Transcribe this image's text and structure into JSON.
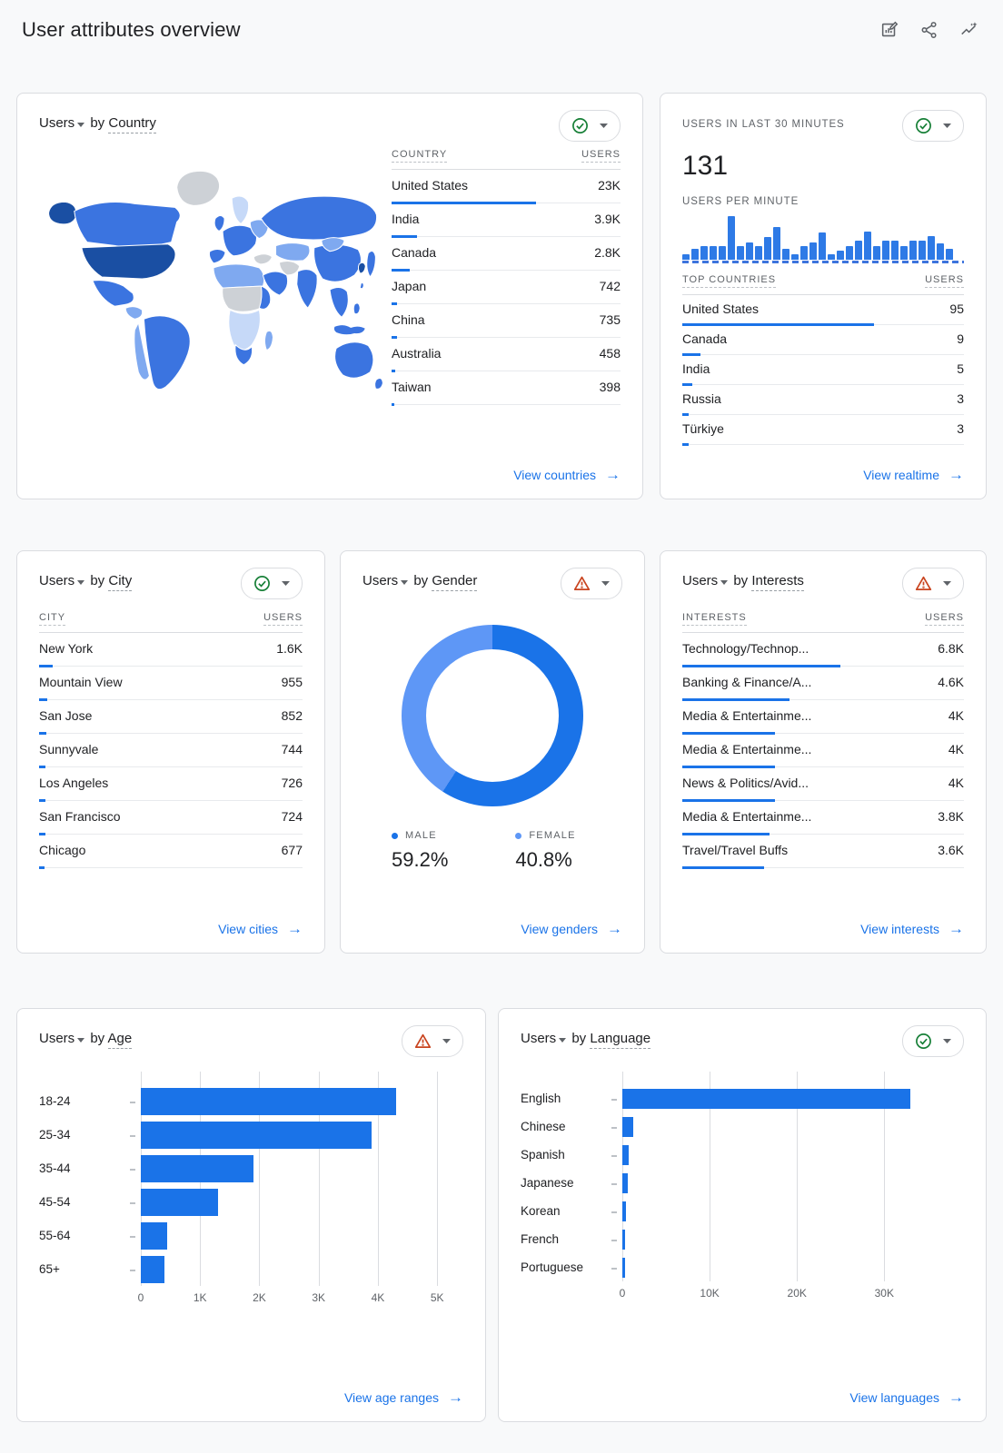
{
  "theme": {
    "accent": "#1a73e8",
    "ok_color": "#188038",
    "warning_color": "#c9441f",
    "page_bg": "#f8f9fa",
    "card_border": "#dadce0"
  },
  "header": {
    "title": "User attributes overview",
    "icons": [
      "customize-report-icon",
      "share-icon",
      "insights-icon"
    ]
  },
  "cards": {
    "country": {
      "title": {
        "entity": "Users",
        "connector": "by",
        "dimension": "Country"
      },
      "status": "ok",
      "table": {
        "headers": [
          "COUNTRY",
          "USERS"
        ],
        "rows": [
          {
            "name": "United States",
            "value": "23K",
            "bar_pct": 63
          },
          {
            "name": "India",
            "value": "3.9K",
            "bar_pct": 11
          },
          {
            "name": "Canada",
            "value": "2.8K",
            "bar_pct": 8
          },
          {
            "name": "Japan",
            "value": "742",
            "bar_pct": 2.2
          },
          {
            "name": "China",
            "value": "735",
            "bar_pct": 2.2
          },
          {
            "name": "Australia",
            "value": "458",
            "bar_pct": 1.4
          },
          {
            "name": "Taiwan",
            "value": "398",
            "bar_pct": 1.2
          }
        ]
      },
      "footer_link": "View countries"
    },
    "realtime": {
      "label": "USERS IN LAST 30 MINUTES",
      "value": "131",
      "chart_label": "USERS PER MINUTE",
      "per_minute_bars": [
        12,
        24,
        32,
        32,
        32,
        100,
        32,
        40,
        32,
        52,
        75,
        24,
        12,
        32,
        40,
        63,
        12,
        20,
        32,
        44,
        65,
        32,
        44,
        44,
        32,
        44,
        44,
        55,
        38,
        24
      ],
      "status": "ok",
      "table": {
        "headers": [
          "TOP COUNTRIES",
          "USERS"
        ],
        "rows": [
          {
            "name": "United States",
            "value": "95",
            "bar_pct": 68
          },
          {
            "name": "Canada",
            "value": "9",
            "bar_pct": 6.5
          },
          {
            "name": "India",
            "value": "5",
            "bar_pct": 3.6
          },
          {
            "name": "Russia",
            "value": "3",
            "bar_pct": 2.2
          },
          {
            "name": "Türkiye",
            "value": "3",
            "bar_pct": 2.2
          }
        ]
      },
      "footer_link": "View realtime"
    },
    "city": {
      "title": {
        "entity": "Users",
        "connector": "by",
        "dimension": "City"
      },
      "status": "ok",
      "table": {
        "headers": [
          "CITY",
          "USERS"
        ],
        "rows": [
          {
            "name": "New York",
            "value": "1.6K",
            "bar_pct": 5
          },
          {
            "name": "Mountain View",
            "value": "955",
            "bar_pct": 3
          },
          {
            "name": "San Jose",
            "value": "852",
            "bar_pct": 2.7
          },
          {
            "name": "Sunnyvale",
            "value": "744",
            "bar_pct": 2.4
          },
          {
            "name": "Los Angeles",
            "value": "726",
            "bar_pct": 2.3
          },
          {
            "name": "San Francisco",
            "value": "724",
            "bar_pct": 2.3
          },
          {
            "name": "Chicago",
            "value": "677",
            "bar_pct": 2.1
          }
        ]
      },
      "footer_link": "View cities"
    },
    "gender": {
      "title": {
        "entity": "Users",
        "connector": "by",
        "dimension": "Gender"
      },
      "status": "warning",
      "male_label": "MALE",
      "male_value": "59.2%",
      "female_label": "FEMALE",
      "female_value": "40.8%",
      "male_pct": 59.2,
      "colors": {
        "male": "#1a73e8",
        "female": "#5e97f6"
      },
      "footer_link": "View genders"
    },
    "interests": {
      "title": {
        "entity": "Users",
        "connector": "by",
        "dimension": "Interests"
      },
      "status": "warning",
      "table": {
        "headers": [
          "INTERESTS",
          "USERS"
        ],
        "rows": [
          {
            "name": "Technology/Technop...",
            "value": "6.8K",
            "bar_pct": 56
          },
          {
            "name": "Banking & Finance/A...",
            "value": "4.6K",
            "bar_pct": 38
          },
          {
            "name": "Media & Entertainme...",
            "value": "4K",
            "bar_pct": 33
          },
          {
            "name": "Media & Entertainme...",
            "value": "4K",
            "bar_pct": 33
          },
          {
            "name": "News & Politics/Avid...",
            "value": "4K",
            "bar_pct": 33
          },
          {
            "name": "Media & Entertainme...",
            "value": "3.8K",
            "bar_pct": 31
          },
          {
            "name": "Travel/Travel Buffs",
            "value": "3.6K",
            "bar_pct": 29
          }
        ]
      },
      "footer_link": "View interests"
    },
    "age": {
      "title": {
        "entity": "Users",
        "connector": "by",
        "dimension": "Age"
      },
      "status": "warning",
      "chart": {
        "categories": [
          "18-24",
          "25-34",
          "35-44",
          "45-54",
          "55-64",
          "65+"
        ],
        "values": [
          4300,
          3900,
          1900,
          1300,
          450,
          400
        ],
        "plot_max": 5350,
        "ticks": [
          {
            "value": 0,
            "label": "0"
          },
          {
            "value": 1000,
            "label": "1K"
          },
          {
            "value": 2000,
            "label": "2K"
          },
          {
            "value": 3000,
            "label": "3K"
          },
          {
            "value": 4000,
            "label": "4K"
          },
          {
            "value": 5000,
            "label": "5K"
          }
        ]
      },
      "footer_link": "View age ranges"
    },
    "language": {
      "title": {
        "entity": "Users",
        "connector": "by",
        "dimension": "Language"
      },
      "status": "ok",
      "chart": {
        "categories": [
          "English",
          "Chinese",
          "Spanish",
          "Japanese",
          "Korean",
          "French",
          "Portuguese"
        ],
        "values": [
          33000,
          1200,
          700,
          600,
          400,
          350,
          300
        ],
        "plot_max": 38500,
        "ticks": [
          {
            "value": 0,
            "label": "0"
          },
          {
            "value": 10000,
            "label": "10K"
          },
          {
            "value": 20000,
            "label": "20K"
          },
          {
            "value": 30000,
            "label": "30K"
          }
        ]
      },
      "footer_link": "View languages"
    }
  },
  "map": {
    "palette": {
      "dark": "#1a4fa3",
      "mid": "#3b74e0",
      "light": "#7fa9f0",
      "xlight": "#c6d9f8",
      "gray": "#cdd1d6"
    },
    "regions": {
      "greenland": "gray",
      "alaska": "dark",
      "canada": "mid",
      "usa": "dark",
      "mexico": "mid",
      "central-america": "light",
      "south-america": "mid",
      "andes": "light",
      "uk": "mid",
      "scandinavia": "xlight",
      "europe": "mid",
      "iberia": "mid",
      "eastern-europe": "light",
      "africa-north": "light",
      "africa-central": "gray",
      "africa-east": "mid",
      "africa-south": "xlight",
      "south-africa": "mid",
      "madagascar": "light",
      "russia": "mid",
      "central-asia": "light",
      "turkey": "gray",
      "middle-east": "mid",
      "iran": "gray",
      "india": "mid",
      "china": "mid",
      "mongolia": "light",
      "se-asia": "mid",
      "japan": "mid",
      "korea": "dark",
      "taiwan": "mid",
      "philippines": "mid",
      "indonesia": "mid",
      "australia": "mid",
      "new-zealand": "mid"
    }
  },
  "chart_data": [
    {
      "type": "table",
      "title": "Users by Country",
      "categories": [
        "United States",
        "India",
        "Canada",
        "Japan",
        "China",
        "Australia",
        "Taiwan"
      ],
      "values": [
        23000,
        3900,
        2800,
        742,
        735,
        458,
        398
      ]
    },
    {
      "type": "bar",
      "title": "Users per minute (last 30 minutes, total 131)",
      "values": [
        12,
        24,
        32,
        32,
        32,
        100,
        32,
        40,
        32,
        52,
        75,
        24,
        12,
        32,
        40,
        63,
        12,
        20,
        32,
        44,
        65,
        32,
        44,
        44,
        32,
        44,
        44,
        55,
        38,
        24
      ],
      "ylabel": "relative height %"
    },
    {
      "type": "table",
      "title": "Top countries (realtime)",
      "categories": [
        "United States",
        "Canada",
        "India",
        "Russia",
        "Türkiye"
      ],
      "values": [
        95,
        9,
        5,
        3,
        3
      ]
    },
    {
      "type": "table",
      "title": "Users by City",
      "categories": [
        "New York",
        "Mountain View",
        "San Jose",
        "Sunnyvale",
        "Los Angeles",
        "San Francisco",
        "Chicago"
      ],
      "values": [
        1600,
        955,
        852,
        744,
        726,
        724,
        677
      ]
    },
    {
      "type": "pie",
      "title": "Users by Gender",
      "categories": [
        "Male",
        "Female"
      ],
      "values": [
        59.2,
        40.8
      ]
    },
    {
      "type": "table",
      "title": "Users by Interests",
      "categories": [
        "Technology/Technop...",
        "Banking & Finance/A...",
        "Media & Entertainme...",
        "Media & Entertainme...",
        "News & Politics/Avid...",
        "Media & Entertainme...",
        "Travel/Travel Buffs"
      ],
      "values": [
        6800,
        4600,
        4000,
        4000,
        4000,
        3800,
        3600
      ]
    },
    {
      "type": "bar",
      "title": "Users by Age",
      "categories": [
        "18-24",
        "25-34",
        "35-44",
        "45-54",
        "55-64",
        "65+"
      ],
      "values": [
        4300,
        3900,
        1900,
        1300,
        450,
        400
      ],
      "xlim": [
        0,
        5350
      ],
      "grid": true
    },
    {
      "type": "bar",
      "title": "Users by Language",
      "categories": [
        "English",
        "Chinese",
        "Spanish",
        "Japanese",
        "Korean",
        "French",
        "Portuguese"
      ],
      "values": [
        33000,
        1200,
        700,
        600,
        400,
        350,
        300
      ],
      "xlim": [
        0,
        38500
      ],
      "grid": true
    }
  ]
}
